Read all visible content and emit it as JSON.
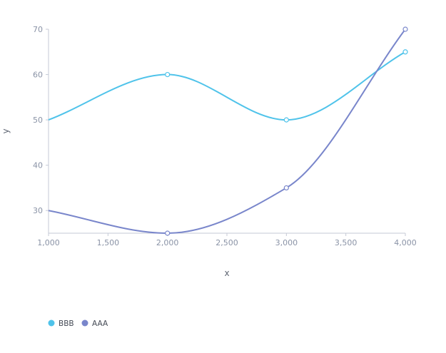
{
  "chart_data": {
    "type": "line",
    "smooth": true,
    "xlabel": "x",
    "ylabel": "y",
    "x": [
      1000,
      2000,
      3000,
      4000
    ],
    "xlim": [
      1000,
      4000
    ],
    "ylim": [
      25,
      70
    ],
    "x_ticks": [
      1000,
      1500,
      2000,
      2500,
      3000,
      3500,
      4000
    ],
    "x_tick_labels": [
      "1,000",
      "1,500",
      "2,000",
      "2,500",
      "3,000",
      "3,500",
      "4,000"
    ],
    "y_ticks": [
      30,
      40,
      50,
      60,
      70
    ],
    "y_tick_labels": [
      "30",
      "40",
      "50",
      "60",
      "70"
    ],
    "grid": false,
    "legend_position": "bottom-left",
    "series": [
      {
        "name": "BBB",
        "color": "#4fc3ea",
        "values": [
          50,
          60,
          50,
          65
        ]
      },
      {
        "name": "AAA",
        "color": "#7986cb",
        "values": [
          30,
          25,
          35,
          70
        ]
      }
    ],
    "axis_color": "#c5cad6"
  }
}
